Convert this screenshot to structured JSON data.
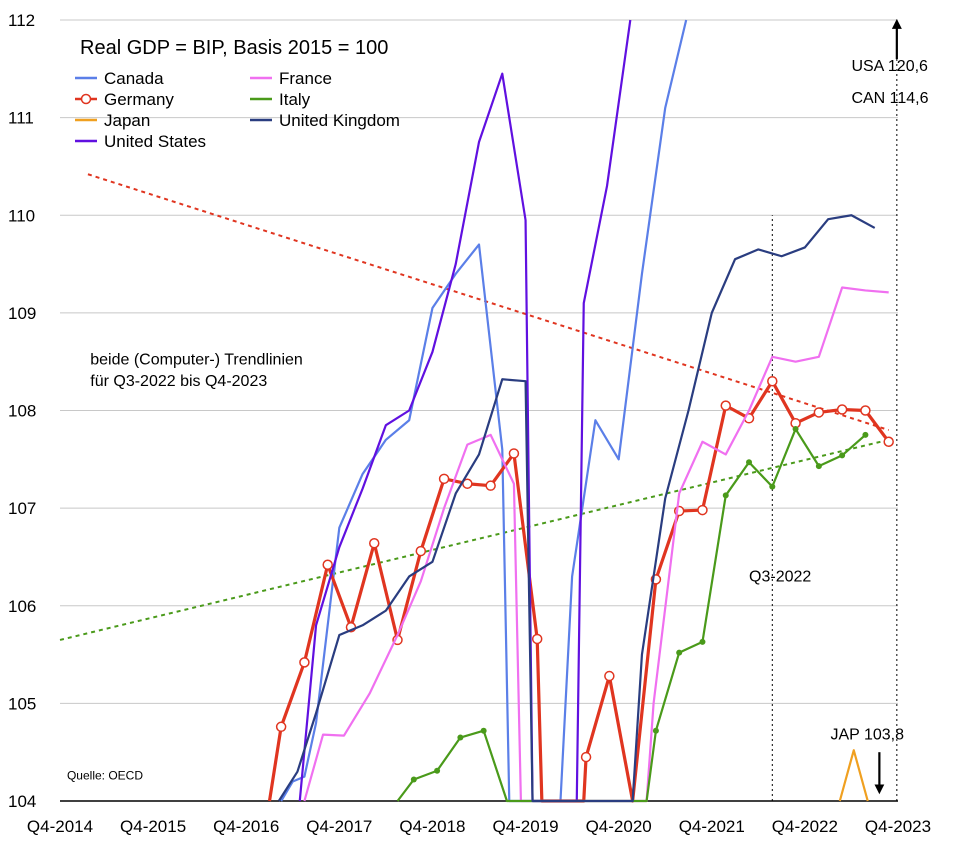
{
  "chart_data": {
    "type": "line",
    "title": "Real GDP = BIP, Basis 2015 = 100",
    "xlabel": "",
    "ylabel": "",
    "ylim": [
      104,
      112
    ],
    "xlim": [
      0,
      36
    ],
    "grid": true,
    "legend_position": "top-left",
    "x_ticks": [
      {
        "index": 0,
        "label": "Q4-2014"
      },
      {
        "index": 4,
        "label": "Q4-2015"
      },
      {
        "index": 8,
        "label": "Q4-2016"
      },
      {
        "index": 12,
        "label": "Q4-2017"
      },
      {
        "index": 16,
        "label": "Q4-2018"
      },
      {
        "index": 20,
        "label": "Q4-2019"
      },
      {
        "index": 24,
        "label": "Q4-2020"
      },
      {
        "index": 28,
        "label": "Q4-2021"
      },
      {
        "index": 32,
        "label": "Q4-2022"
      },
      {
        "index": 36,
        "label": "Q4-2023"
      }
    ],
    "y_ticks": [
      104,
      105,
      106,
      107,
      108,
      109,
      110,
      111,
      112
    ],
    "series": [
      {
        "name": "Canada",
        "color": "#5b7fe8",
        "marker": "none",
        "points": [
          [
            9.5,
            103.5
          ],
          [
            10,
            104.2
          ],
          [
            10.5,
            104.25
          ],
          [
            11,
            104.8
          ],
          [
            11.5,
            105.8
          ],
          [
            12,
            106.8
          ],
          [
            13,
            107.35
          ],
          [
            14,
            107.7
          ],
          [
            15,
            107.9
          ],
          [
            16,
            109.05
          ],
          [
            17,
            109.4
          ],
          [
            18,
            109.7
          ],
          [
            19,
            107.6
          ],
          [
            19.3,
            104
          ],
          [
            21.5,
            104
          ],
          [
            22,
            106.3
          ],
          [
            23,
            107.9
          ],
          [
            24,
            107.5
          ],
          [
            25,
            109.4
          ],
          [
            26,
            111.1
          ],
          [
            26.9,
            112
          ]
        ]
      },
      {
        "name": "Germany",
        "color": "#e03520",
        "marker": "circle",
        "points": [
          [
            9,
            104
          ],
          [
            9.5,
            104.76
          ],
          [
            10.5,
            105.42
          ],
          [
            11.5,
            106.42
          ],
          [
            12.5,
            105.78
          ],
          [
            13.5,
            106.64
          ],
          [
            14.5,
            105.65
          ],
          [
            15.5,
            106.56
          ],
          [
            16.5,
            107.3
          ],
          [
            17.5,
            107.25
          ],
          [
            18.5,
            107.23
          ],
          [
            19.5,
            107.56
          ],
          [
            20.5,
            105.66
          ],
          [
            20.7,
            104
          ],
          [
            22.5,
            104
          ],
          [
            22.6,
            104.45
          ],
          [
            23.6,
            105.28
          ],
          [
            24.6,
            104
          ],
          [
            25.6,
            106.27
          ],
          [
            26.6,
            106.97
          ],
          [
            27.6,
            106.98
          ],
          [
            28.6,
            108.05
          ],
          [
            29.6,
            107.92
          ],
          [
            30.6,
            108.3
          ],
          [
            31.6,
            107.87
          ],
          [
            32.6,
            107.98
          ],
          [
            33.6,
            108.01
          ],
          [
            34.6,
            108.0
          ],
          [
            35.6,
            107.68
          ]
        ]
      },
      {
        "name": "Japan",
        "color": "#f0a020",
        "marker": "none",
        "points": [
          [
            33.5,
            104
          ],
          [
            34.1,
            104.52
          ],
          [
            34.7,
            104
          ]
        ]
      },
      {
        "name": "United States",
        "color": "#6010e0",
        "marker": "none",
        "points": [
          [
            10.3,
            103.5
          ],
          [
            11,
            105.8
          ],
          [
            12,
            106.6
          ],
          [
            13,
            107.2
          ],
          [
            14,
            107.85
          ],
          [
            15,
            108.0
          ],
          [
            16,
            108.6
          ],
          [
            17,
            109.5
          ],
          [
            18,
            110.75
          ],
          [
            19,
            111.45
          ],
          [
            20,
            109.95
          ],
          [
            20.3,
            104
          ],
          [
            22.2,
            104
          ],
          [
            22.5,
            109.1
          ],
          [
            23.5,
            110.3
          ],
          [
            24.5,
            112
          ]
        ]
      },
      {
        "name": "France",
        "color": "#f070f0",
        "marker": "none",
        "points": [
          [
            10.5,
            104
          ],
          [
            11.3,
            104.68
          ],
          [
            12.2,
            104.67
          ],
          [
            13.3,
            105.1
          ],
          [
            14.5,
            105.7
          ],
          [
            15.5,
            106.25
          ],
          [
            16.5,
            107.0
          ],
          [
            17.5,
            107.65
          ],
          [
            18.5,
            107.75
          ],
          [
            19.5,
            107.25
          ],
          [
            19.8,
            104
          ],
          [
            25.2,
            104
          ],
          [
            25.5,
            105.0
          ],
          [
            26.6,
            107.15
          ],
          [
            27.6,
            107.68
          ],
          [
            28.6,
            107.55
          ],
          [
            29.6,
            108.0
          ],
          [
            30.6,
            108.55
          ],
          [
            31.6,
            108.5
          ],
          [
            32.6,
            108.55
          ],
          [
            33.6,
            109.26
          ],
          [
            34.6,
            109.23
          ],
          [
            35.6,
            109.21
          ]
        ]
      },
      {
        "name": "Italy",
        "color": "#4a9a1a",
        "marker": "dot",
        "points": [
          [
            14.5,
            104
          ],
          [
            15.2,
            104.22
          ],
          [
            16.2,
            104.31
          ],
          [
            17.2,
            104.65
          ],
          [
            18.2,
            104.72
          ],
          [
            19.2,
            104
          ],
          [
            25.2,
            104
          ],
          [
            25.6,
            104.72
          ],
          [
            26.6,
            105.52
          ],
          [
            27.6,
            105.63
          ],
          [
            28.6,
            107.13
          ],
          [
            29.6,
            107.47
          ],
          [
            30.6,
            107.22
          ],
          [
            31.6,
            107.81
          ],
          [
            32.6,
            107.43
          ],
          [
            33.6,
            107.54
          ],
          [
            34.6,
            107.75
          ]
        ]
      },
      {
        "name": "United Kingdom",
        "color": "#2a3d80",
        "marker": "none",
        "points": [
          [
            9.4,
            103.6
          ],
          [
            10.2,
            104.3
          ],
          [
            11,
            104.9
          ],
          [
            12,
            105.7
          ],
          [
            13,
            105.8
          ],
          [
            14,
            105.95
          ],
          [
            15,
            106.3
          ],
          [
            16,
            106.45
          ],
          [
            17,
            107.15
          ],
          [
            18,
            107.55
          ],
          [
            19,
            108.32
          ],
          [
            20,
            108.3
          ],
          [
            20.3,
            104
          ],
          [
            24.6,
            104
          ],
          [
            25,
            105.5
          ],
          [
            26,
            107.1
          ],
          [
            27,
            108.0
          ],
          [
            28,
            109.0
          ],
          [
            29,
            109.55
          ],
          [
            30,
            109.65
          ],
          [
            31,
            109.58
          ],
          [
            32,
            109.67
          ],
          [
            33,
            109.96
          ],
          [
            34,
            110.0
          ],
          [
            35,
            109.87
          ]
        ]
      }
    ],
    "trendlines": [
      {
        "series": "Germany",
        "color": "#e03520",
        "style": "dotted",
        "from": [
          1.2,
          110.42
        ],
        "to": [
          35.6,
          107.8
        ]
      },
      {
        "series": "Italy",
        "color": "#4a9a1a",
        "style": "dotted",
        "from": [
          0,
          105.65
        ],
        "to": [
          35.6,
          107.7
        ]
      }
    ],
    "vertical_markers": [
      {
        "x": 30.6,
        "from": 104,
        "to": 110.0,
        "style": "dotted"
      },
      {
        "x": 35.95,
        "from": 104,
        "to": 111.9,
        "style": "dotted"
      }
    ],
    "annotations": [
      {
        "text": "beide (Computer-) Trendlinien",
        "x": 1.3,
        "y": 108.47
      },
      {
        "text": "für Q3-2022 bis Q4-2023",
        "x": 1.3,
        "y": 108.25
      },
      {
        "text": "Q3-2022",
        "x": 29.6,
        "y": 106.25
      },
      {
        "text": "USA 120,6",
        "x": 34.0,
        "y": 111.48
      },
      {
        "text": "CAN 114,6",
        "x": 34.0,
        "y": 111.15
      },
      {
        "text": "JAP 103,8",
        "x": 33.1,
        "y": 104.63
      },
      {
        "text": "Quelle: OECD",
        "x": 0.3,
        "y": 104.22
      }
    ],
    "arrows": [
      {
        "x": 35.95,
        "from": 111.6,
        "to": 111.96,
        "direction": "up"
      },
      {
        "x": 35.2,
        "from": 104.5,
        "to": 104.12,
        "direction": "down"
      }
    ]
  }
}
